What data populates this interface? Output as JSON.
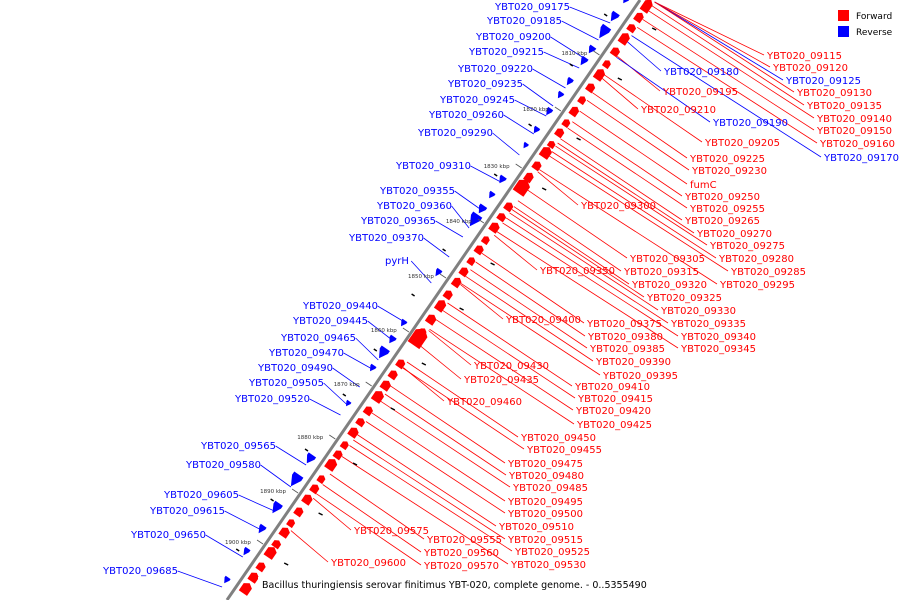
{
  "caption": "Bacillus thuringiensis serovar finitimus YBT-020, complete genome. - 0..5355490",
  "legend": [
    {
      "label": "Forward",
      "color": "#ff0000"
    },
    {
      "label": "Reverse",
      "color": "#0000ff"
    }
  ],
  "colors": {
    "forward": "#ff0000",
    "reverse": "#0000ff",
    "axis": "#808080"
  },
  "ticks": [
    "1810 kbp",
    "1820 kbp",
    "1830 kbp",
    "1840 kbp",
    "1850 kbp",
    "1860 kbp",
    "1870 kbp",
    "1880 kbp",
    "1890 kbp",
    "1900 kbp"
  ],
  "reverse_labels": [
    "YBT020_09175",
    "YBT020_09185",
    "YBT020_09200",
    "YBT020_09215",
    "YBT020_09220",
    "YBT020_09235",
    "YBT020_09245",
    "YBT020_09260",
    "YBT020_09290",
    "YBT020_09310",
    "YBT020_09355",
    "YBT020_09360",
    "YBT020_09365",
    "YBT020_09370",
    "pyrH",
    "YBT020_09440",
    "YBT020_09445",
    "YBT020_09465",
    "YBT020_09470",
    "YBT020_09490",
    "YBT020_09505",
    "YBT020_09520",
    "YBT020_09565",
    "YBT020_09580",
    "YBT020_09605",
    "YBT020_09615",
    "YBT020_09650",
    "YBT020_09685"
  ],
  "right_labels": [
    {
      "text": "YBT020_09115",
      "strand": "forward"
    },
    {
      "text": "YBT020_09120",
      "strand": "forward"
    },
    {
      "text": "YBT020_09125",
      "strand": "reverse"
    },
    {
      "text": "YBT020_09180",
      "strand": "reverse"
    },
    {
      "text": "YBT020_09130",
      "strand": "forward"
    },
    {
      "text": "YBT020_09195",
      "strand": "forward"
    },
    {
      "text": "YBT020_09135",
      "strand": "forward"
    },
    {
      "text": "YBT020_09210",
      "strand": "forward"
    },
    {
      "text": "YBT020_09140",
      "strand": "forward"
    },
    {
      "text": "YBT020_09190",
      "strand": "reverse"
    },
    {
      "text": "YBT020_09150",
      "strand": "forward"
    },
    {
      "text": "YBT020_09205",
      "strand": "forward"
    },
    {
      "text": "YBT020_09160",
      "strand": "forward"
    },
    {
      "text": "YBT020_09170",
      "strand": "reverse"
    },
    {
      "text": "YBT020_09225",
      "strand": "forward"
    },
    {
      "text": "YBT020_09230",
      "strand": "forward"
    },
    {
      "text": "fumC",
      "strand": "forward"
    },
    {
      "text": "YBT020_09250",
      "strand": "forward"
    },
    {
      "text": "YBT020_09300",
      "strand": "forward"
    },
    {
      "text": "YBT020_09255",
      "strand": "forward"
    },
    {
      "text": "YBT020_09265",
      "strand": "forward"
    },
    {
      "text": "YBT020_09270",
      "strand": "forward"
    },
    {
      "text": "YBT020_09275",
      "strand": "forward"
    },
    {
      "text": "YBT020_09305",
      "strand": "forward"
    },
    {
      "text": "YBT020_09280",
      "strand": "forward"
    },
    {
      "text": "YBT020_09350",
      "strand": "forward"
    },
    {
      "text": "YBT020_09315",
      "strand": "forward"
    },
    {
      "text": "YBT020_09285",
      "strand": "forward"
    },
    {
      "text": "YBT020_09320",
      "strand": "forward"
    },
    {
      "text": "YBT020_09295",
      "strand": "forward"
    },
    {
      "text": "YBT020_09325",
      "strand": "forward"
    },
    {
      "text": "YBT020_09330",
      "strand": "forward"
    },
    {
      "text": "YBT020_09400",
      "strand": "forward"
    },
    {
      "text": "YBT020_09375",
      "strand": "forward"
    },
    {
      "text": "YBT020_09335",
      "strand": "forward"
    },
    {
      "text": "YBT020_09380",
      "strand": "forward"
    },
    {
      "text": "YBT020_09340",
      "strand": "forward"
    },
    {
      "text": "YBT020_09385",
      "strand": "forward"
    },
    {
      "text": "YBT020_09345",
      "strand": "forward"
    },
    {
      "text": "YBT020_09390",
      "strand": "forward"
    },
    {
      "text": "YBT020_09430",
      "strand": "forward"
    },
    {
      "text": "YBT020_09395",
      "strand": "forward"
    },
    {
      "text": "YBT020_09435",
      "strand": "forward"
    },
    {
      "text": "YBT020_09410",
      "strand": "forward"
    },
    {
      "text": "YBT020_09415",
      "strand": "forward"
    },
    {
      "text": "YBT020_09460",
      "strand": "forward"
    },
    {
      "text": "YBT020_09420",
      "strand": "forward"
    },
    {
      "text": "YBT020_09425",
      "strand": "forward"
    },
    {
      "text": "YBT020_09450",
      "strand": "forward"
    },
    {
      "text": "YBT020_09455",
      "strand": "forward"
    },
    {
      "text": "YBT020_09475",
      "strand": "forward"
    },
    {
      "text": "YBT020_09480",
      "strand": "forward"
    },
    {
      "text": "YBT020_09485",
      "strand": "forward"
    },
    {
      "text": "YBT020_09495",
      "strand": "forward"
    },
    {
      "text": "YBT020_09500",
      "strand": "forward"
    },
    {
      "text": "YBT020_09510",
      "strand": "forward"
    },
    {
      "text": "YBT020_09575",
      "strand": "forward"
    },
    {
      "text": "YBT020_09555",
      "strand": "forward"
    },
    {
      "text": "YBT020_09515",
      "strand": "forward"
    },
    {
      "text": "YBT020_09525",
      "strand": "forward"
    },
    {
      "text": "YBT020_09560",
      "strand": "forward"
    },
    {
      "text": "YBT020_09600",
      "strand": "forward"
    },
    {
      "text": "YBT020_09570",
      "strand": "forward"
    },
    {
      "text": "YBT020_09530",
      "strand": "forward"
    }
  ]
}
